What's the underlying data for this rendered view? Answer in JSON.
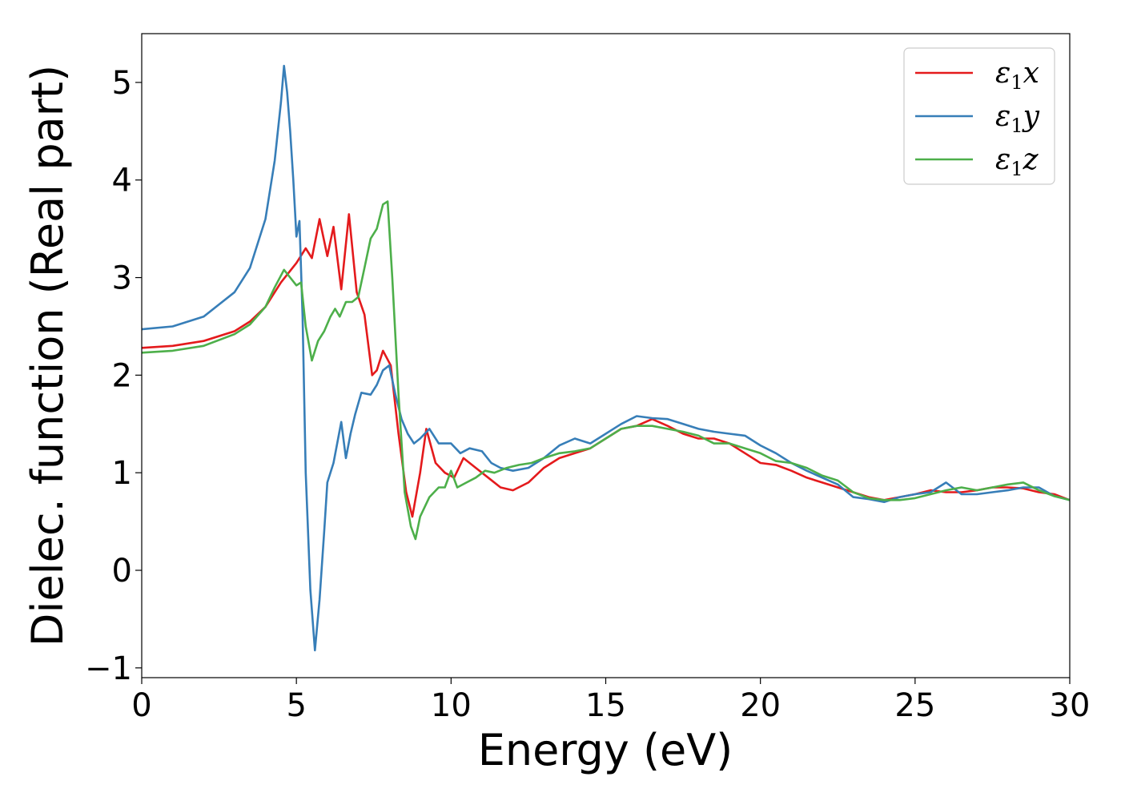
{
  "chart_data": {
    "type": "line",
    "title": "",
    "xlabel": "Energy (eV)",
    "ylabel": "Dielec. function (Real part)",
    "xlim": [
      0,
      30
    ],
    "ylim": [
      -1.1,
      5.5
    ],
    "xticks": [
      0,
      5,
      10,
      15,
      20,
      25,
      30
    ],
    "xtick_labels": [
      "0",
      "5",
      "10",
      "15",
      "20",
      "25",
      "30"
    ],
    "yticks": [
      -1,
      0,
      1,
      2,
      3,
      4,
      5
    ],
    "ytick_labels": [
      "−1",
      "0",
      "1",
      "2",
      "3",
      "4",
      "5"
    ],
    "grid": false,
    "legend_position": "top-right",
    "series": [
      {
        "name": "ε",
        "name_sub": "1",
        "name_suffix": "x",
        "color": "#e41a1c",
        "x": [
          0,
          1,
          2,
          3,
          3.5,
          4,
          4.5,
          5.0,
          5.3,
          5.5,
          5.75,
          6.0,
          6.2,
          6.45,
          6.7,
          6.95,
          7.2,
          7.45,
          7.6,
          7.8,
          8.05,
          8.3,
          8.55,
          8.75,
          9.0,
          9.2,
          9.5,
          9.8,
          10.1,
          10.4,
          10.8,
          11.2,
          11.6,
          12.0,
          12.5,
          13.0,
          13.5,
          14.0,
          14.5,
          15.0,
          15.5,
          16.0,
          16.5,
          17.0,
          17.5,
          18.0,
          18.5,
          19.0,
          19.5,
          20.0,
          20.5,
          21.0,
          21.5,
          22.0,
          22.5,
          23.0,
          23.5,
          24.0,
          24.5,
          25.0,
          25.5,
          26.0,
          26.5,
          27.0,
          27.5,
          28.0,
          28.5,
          29.0,
          29.5,
          30.0
        ],
        "y": [
          2.28,
          2.3,
          2.35,
          2.45,
          2.55,
          2.7,
          2.95,
          3.15,
          3.3,
          3.2,
          3.6,
          3.22,
          3.52,
          2.88,
          3.65,
          2.85,
          2.62,
          2.0,
          2.05,
          2.25,
          2.1,
          1.4,
          0.8,
          0.55,
          1.0,
          1.45,
          1.1,
          1.0,
          0.95,
          1.15,
          1.05,
          0.95,
          0.85,
          0.82,
          0.9,
          1.05,
          1.15,
          1.2,
          1.25,
          1.35,
          1.45,
          1.48,
          1.55,
          1.48,
          1.4,
          1.35,
          1.35,
          1.3,
          1.2,
          1.1,
          1.08,
          1.02,
          0.95,
          0.9,
          0.85,
          0.8,
          0.75,
          0.72,
          0.75,
          0.78,
          0.82,
          0.8,
          0.8,
          0.82,
          0.85,
          0.85,
          0.84,
          0.8,
          0.78,
          0.72
        ]
      },
      {
        "name": "ε",
        "name_sub": "1",
        "name_suffix": "y",
        "color": "#377eb8",
        "x": [
          0,
          1,
          2,
          3,
          3.5,
          4,
          4.3,
          4.5,
          4.6,
          4.7,
          4.8,
          4.9,
          5.0,
          5.1,
          5.2,
          5.3,
          5.45,
          5.6,
          5.75,
          5.9,
          6.0,
          6.2,
          6.45,
          6.6,
          6.75,
          6.9,
          7.1,
          7.4,
          7.6,
          7.8,
          8.0,
          8.2,
          8.4,
          8.6,
          8.8,
          9.0,
          9.3,
          9.6,
          10.0,
          10.3,
          10.6,
          11.0,
          11.3,
          11.6,
          12.0,
          12.5,
          13.0,
          13.5,
          14.0,
          14.5,
          15.0,
          15.5,
          16.0,
          16.5,
          17.0,
          17.5,
          18.0,
          18.5,
          19.0,
          19.5,
          20.0,
          20.5,
          21.0,
          21.5,
          22.0,
          22.5,
          23.0,
          23.5,
          24.0,
          24.5,
          25.0,
          25.5,
          26.0,
          26.5,
          27.0,
          27.5,
          28.0,
          28.5,
          29.0,
          29.5,
          30.0
        ],
        "y": [
          2.47,
          2.5,
          2.6,
          2.85,
          3.1,
          3.6,
          4.2,
          4.8,
          5.17,
          4.9,
          4.5,
          4.0,
          3.42,
          3.58,
          2.6,
          1.0,
          -0.2,
          -0.82,
          -0.3,
          0.4,
          0.9,
          1.1,
          1.52,
          1.15,
          1.4,
          1.6,
          1.82,
          1.8,
          1.9,
          2.05,
          2.1,
          1.8,
          1.55,
          1.4,
          1.3,
          1.35,
          1.45,
          1.3,
          1.3,
          1.2,
          1.25,
          1.22,
          1.1,
          1.05,
          1.02,
          1.05,
          1.15,
          1.28,
          1.35,
          1.3,
          1.4,
          1.5,
          1.58,
          1.56,
          1.55,
          1.5,
          1.45,
          1.42,
          1.4,
          1.38,
          1.28,
          1.2,
          1.1,
          1.02,
          0.95,
          0.88,
          0.75,
          0.73,
          0.7,
          0.75,
          0.78,
          0.8,
          0.9,
          0.78,
          0.78,
          0.8,
          0.82,
          0.85,
          0.85,
          0.76,
          0.72
        ]
      },
      {
        "name": "ε",
        "name_sub": "1",
        "name_suffix": "z",
        "color": "#4daf4a",
        "x": [
          0,
          1,
          2,
          3,
          3.5,
          4,
          4.3,
          4.6,
          4.8,
          5.0,
          5.15,
          5.3,
          5.5,
          5.7,
          5.9,
          6.1,
          6.25,
          6.4,
          6.6,
          6.8,
          7.0,
          7.2,
          7.4,
          7.6,
          7.8,
          7.95,
          8.1,
          8.3,
          8.5,
          8.7,
          8.85,
          9.0,
          9.3,
          9.6,
          9.8,
          10.0,
          10.2,
          10.5,
          10.8,
          11.1,
          11.4,
          11.8,
          12.2,
          12.6,
          13.0,
          13.5,
          14.0,
          14.5,
          15.0,
          15.5,
          16.0,
          16.5,
          17.0,
          17.5,
          18.0,
          18.5,
          19.0,
          19.5,
          20.0,
          20.5,
          21.0,
          21.5,
          22.0,
          22.5,
          23.0,
          23.5,
          24.0,
          24.5,
          25.0,
          25.5,
          26.0,
          26.5,
          27.0,
          27.5,
          28.0,
          28.5,
          29.0,
          29.5,
          30.0
        ],
        "y": [
          2.23,
          2.25,
          2.3,
          2.42,
          2.52,
          2.7,
          2.9,
          3.08,
          3.0,
          2.92,
          2.95,
          2.5,
          2.15,
          2.35,
          2.45,
          2.6,
          2.68,
          2.6,
          2.75,
          2.75,
          2.8,
          3.1,
          3.4,
          3.5,
          3.75,
          3.78,
          3.0,
          1.8,
          0.8,
          0.45,
          0.32,
          0.55,
          0.75,
          0.85,
          0.85,
          1.02,
          0.85,
          0.9,
          0.95,
          1.02,
          1.0,
          1.05,
          1.08,
          1.1,
          1.15,
          1.2,
          1.22,
          1.25,
          1.35,
          1.45,
          1.48,
          1.48,
          1.45,
          1.42,
          1.38,
          1.3,
          1.3,
          1.25,
          1.2,
          1.12,
          1.1,
          1.05,
          0.97,
          0.92,
          0.8,
          0.74,
          0.72,
          0.72,
          0.74,
          0.78,
          0.82,
          0.85,
          0.82,
          0.85,
          0.88,
          0.9,
          0.82,
          0.76,
          0.72
        ]
      }
    ]
  }
}
